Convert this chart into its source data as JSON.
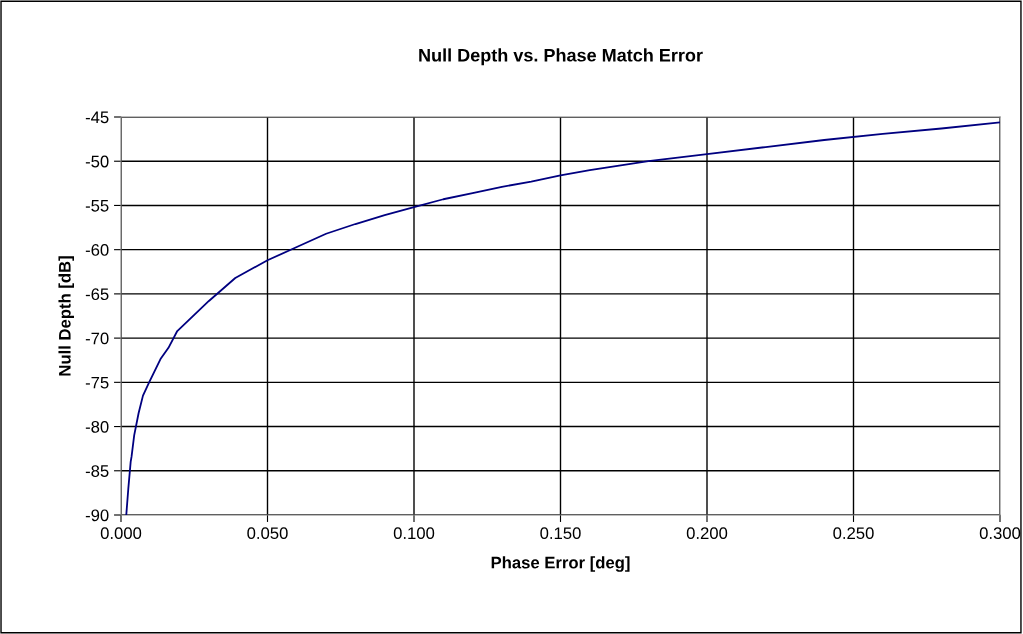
{
  "chart_data": {
    "type": "line",
    "title": "Null Depth vs. Phase Match Error",
    "xlabel": "Phase Error [deg]",
    "ylabel": "Null Depth [dB]",
    "x": [
      0.0018,
      0.0025,
      0.0033,
      0.0036,
      0.0045,
      0.006,
      0.0075,
      0.0096,
      0.0136,
      0.0162,
      0.0192,
      0.03,
      0.039,
      0.05,
      0.06,
      0.07,
      0.08,
      0.09,
      0.1,
      0.11,
      0.12,
      0.13,
      0.14,
      0.15,
      0.16,
      0.17,
      0.18,
      0.19,
      0.2,
      0.22,
      0.24,
      0.26,
      0.28,
      0.3
    ],
    "series": [
      {
        "color": "#000080",
        "values": [
          -90,
          -87,
          -84,
          -83.4,
          -81,
          -78.5,
          -76.5,
          -75,
          -72.3,
          -71.1,
          -69.2,
          -65.8,
          -63.2,
          -61.2,
          -59.7,
          -58.2,
          -57.1,
          -56.1,
          -55.2,
          -54.3,
          -53.6,
          -52.9,
          -52.3,
          -51.6,
          -51.0,
          -50.5,
          -50.0,
          -49.6,
          -49.2,
          -48.4,
          -47.6,
          -46.9,
          -46.3,
          -45.6
        ]
      }
    ],
    "xlim": [
      0,
      0.3
    ],
    "ylim": [
      -90,
      -45
    ],
    "xticks": [
      {
        "value": 0,
        "label": "0.000"
      },
      {
        "value": 0.05,
        "label": "0.050"
      },
      {
        "value": 0.1,
        "label": "0.100"
      },
      {
        "value": 0.15,
        "label": "0.150"
      },
      {
        "value": 0.2,
        "label": "0.200"
      },
      {
        "value": 0.25,
        "label": "0.250"
      },
      {
        "value": 0.3,
        "label": "0.300"
      }
    ],
    "yticks": [
      -90,
      -85,
      -80,
      -75,
      -70,
      -65,
      -60,
      -55,
      -50,
      -45
    ],
    "grid": true,
    "legend": false,
    "marker": "none",
    "line_style": "solid"
  }
}
